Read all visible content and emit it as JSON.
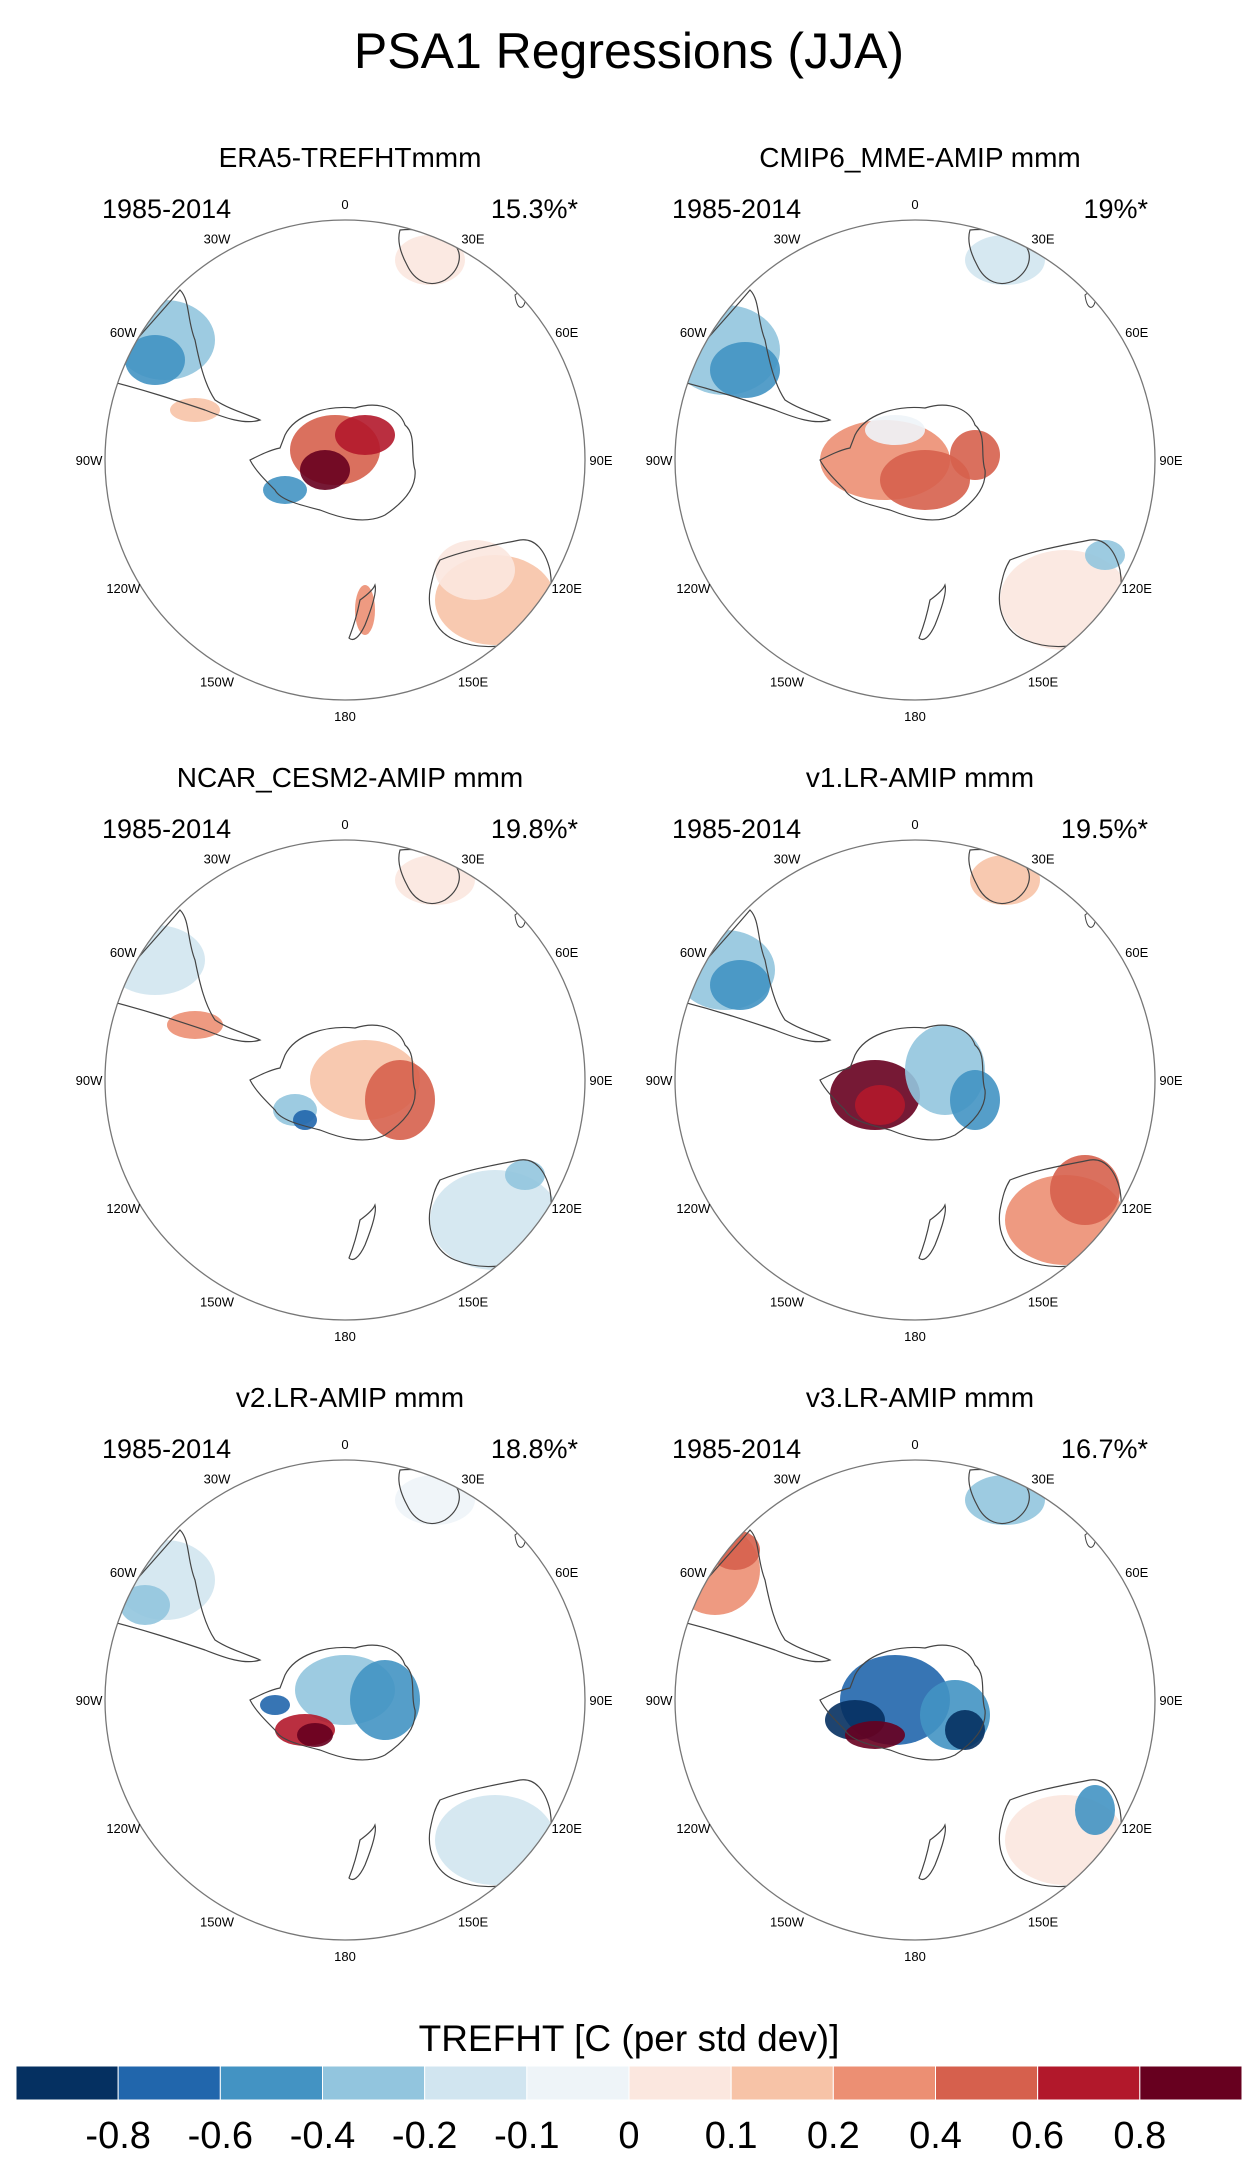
{
  "title": "PSA1 Regressions (JJA)",
  "panels": [
    {
      "title": "ERA5-TREFHTmmm",
      "period": "1985-2014",
      "variance": "15.3%*"
    },
    {
      "title": "CMIP6_MME-AMIP  mmm",
      "period": "1985-2014",
      "variance": "19%*"
    },
    {
      "title": "NCAR_CESM2-AMIP  mmm",
      "period": "1985-2014",
      "variance": "19.8%*"
    },
    {
      "title": "v1.LR-AMIP  mmm",
      "period": "1985-2014",
      "variance": "19.5%*"
    },
    {
      "title": "v2.LR-AMIP  mmm",
      "period": "1985-2014",
      "variance": "18.8%*"
    },
    {
      "title": "v3.LR-AMIP  mmm",
      "period": "1985-2014",
      "variance": "16.7%*"
    }
  ],
  "lon_labels": [
    "0",
    "30E",
    "60E",
    "90E",
    "120E",
    "150E",
    "180",
    "150W",
    "120W",
    "90W",
    "60W",
    "30W"
  ],
  "colorbar": {
    "title": "TREFHT [C (per std dev)]",
    "ticks": [
      "-0.8",
      "-0.6",
      "-0.4",
      "-0.2",
      "-0.1",
      "0",
      "0.1",
      "0.2",
      "0.4",
      "0.6",
      "0.8"
    ],
    "colors": [
      "#053061",
      "#2166ac",
      "#4393c3",
      "#92c5de",
      "#d1e5f0",
      "#eef4f8",
      "#fbe7df",
      "#f7c3a7",
      "#ec8f73",
      "#d6604d",
      "#b2182b",
      "#67001f"
    ]
  }
}
